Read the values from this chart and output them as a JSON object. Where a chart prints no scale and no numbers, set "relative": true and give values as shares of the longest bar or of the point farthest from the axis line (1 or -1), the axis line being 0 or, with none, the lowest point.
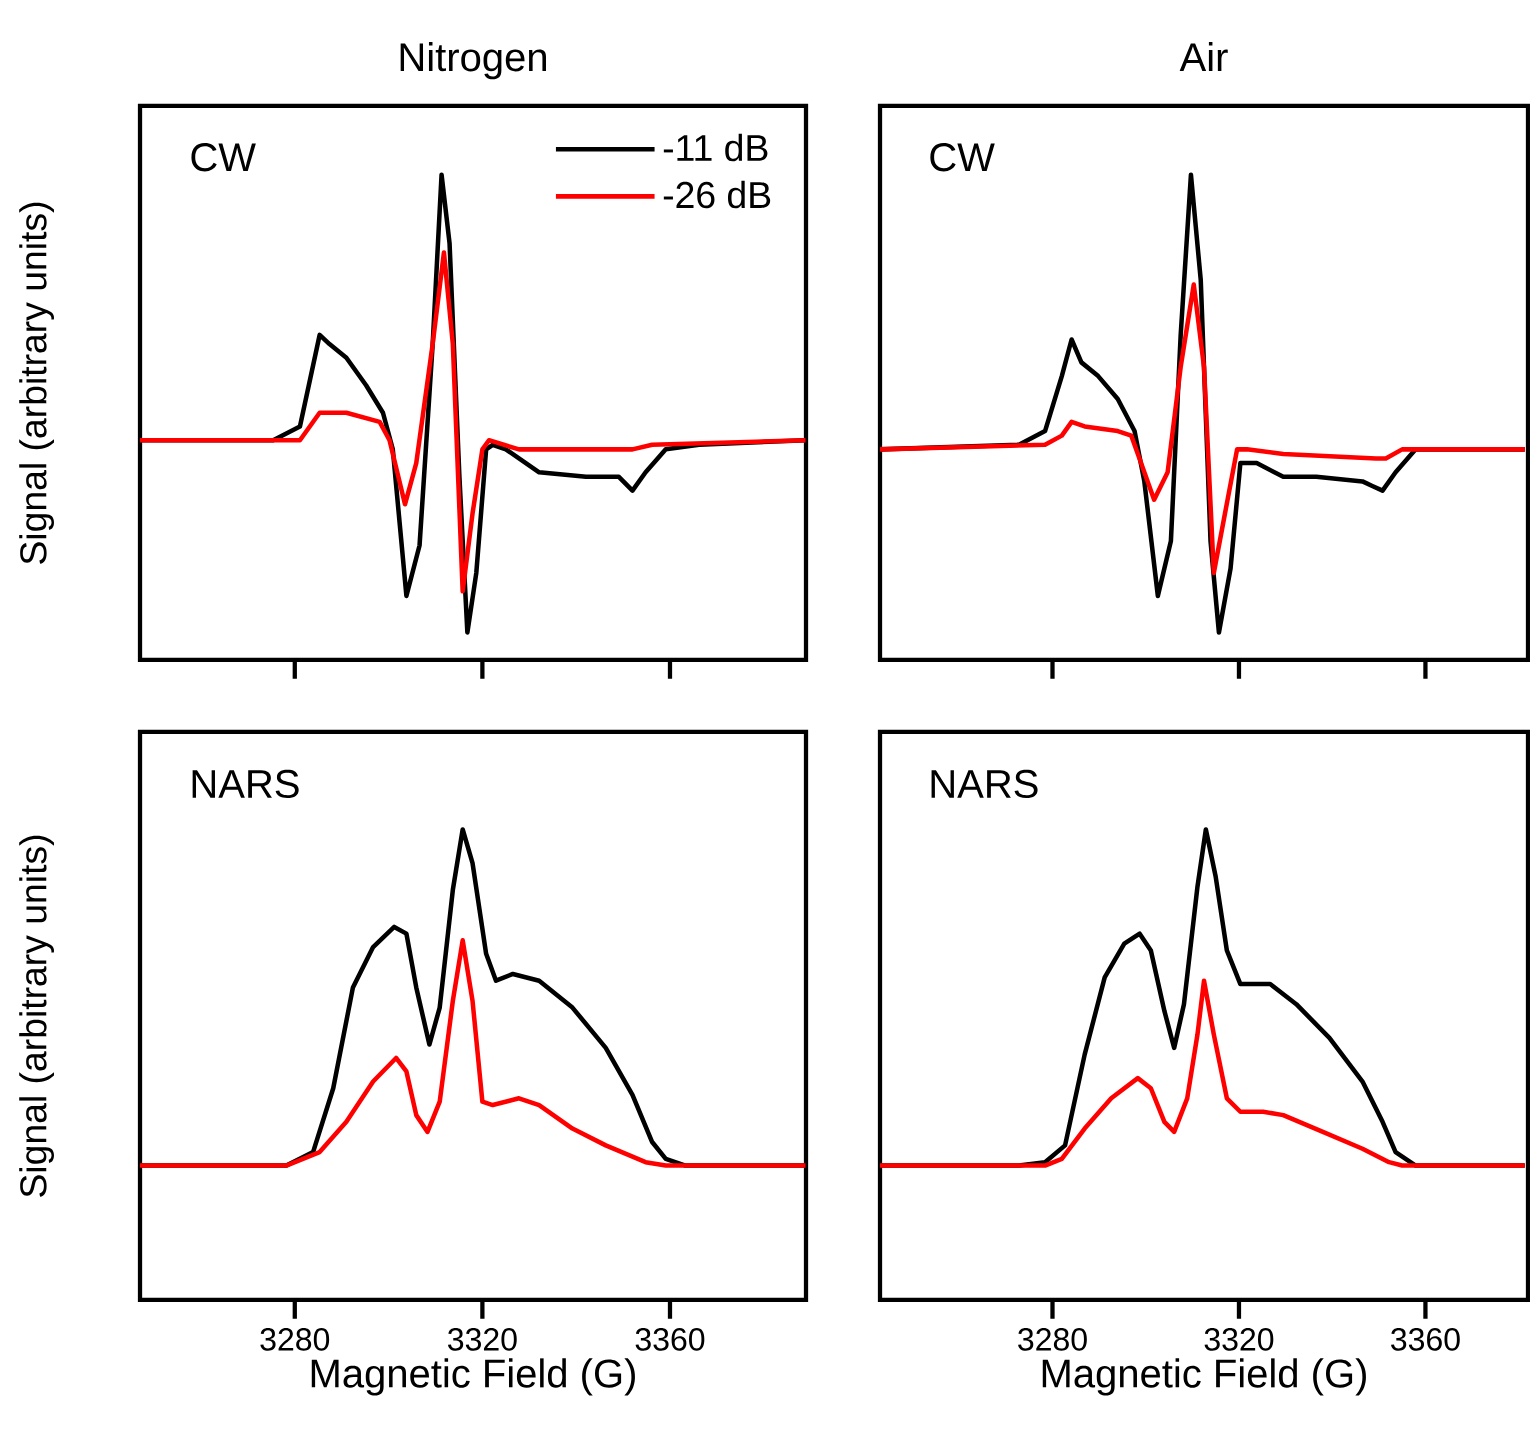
{
  "chart_data": [
    {
      "type": "line",
      "title": "Nitrogen",
      "ylabel": "Signal (arbitrary units)",
      "annotations": [
        "CW"
      ],
      "relative": true,
      "xlim": [
        3247,
        3389
      ],
      "xticks": [
        3280,
        3320,
        3360
      ],
      "tick_labels": false,
      "legend": "top right",
      "series": [
        {
          "name": "-11 dB",
          "color": "#000000",
          "x": [
            3247.0,
            3275.4,
            3281.1,
            3285.3,
            3287.4,
            3291.0,
            3295.2,
            3298.8,
            3300.9,
            3303.8,
            3306.6,
            3309.4,
            3311.3,
            3313.0,
            3315.1,
            3316.8,
            3318.7,
            3320.8,
            3322.2,
            3325.0,
            3332.1,
            3342.1,
            3349.1,
            3352.0,
            3354.8,
            3359.1,
            3366.2,
            3388.9
          ],
          "values": [
            0.42,
            0.42,
            0.45,
            0.65,
            0.63,
            0.6,
            0.54,
            0.48,
            0.4,
            0.08,
            0.19,
            0.63,
            1,
            0.85,
            0.34,
            0,
            0.13,
            0.4,
            0.41,
            0.4,
            0.35,
            0.34,
            0.34,
            0.31,
            0.35,
            0.4,
            0.41,
            0.42
          ]
        },
        {
          "name": "-26 dB",
          "color": "#ff0000",
          "x": [
            3247.0,
            3281.1,
            3285.3,
            3291.0,
            3298.1,
            3300.2,
            3303.5,
            3305.9,
            3309.4,
            3311.8,
            3313.7,
            3315.8,
            3317.9,
            3320.0,
            3321.4,
            3327.8,
            3342.1,
            3352.0,
            3356.2,
            3388.9
          ],
          "values": [
            0.42,
            0.42,
            0.48,
            0.48,
            0.46,
            0.42,
            0.28,
            0.37,
            0.63,
            0.83,
            0.63,
            0.09,
            0.26,
            0.4,
            0.42,
            0.4,
            0.4,
            0.4,
            0.41,
            0.42
          ]
        }
      ]
    },
    {
      "type": "line",
      "title": "Air",
      "annotations": [
        "CW"
      ],
      "relative": true,
      "xlim": [
        3243,
        3382
      ],
      "xticks": [
        3280,
        3320,
        3360
      ],
      "tick_labels": false,
      "series": [
        {
          "color": "#000000",
          "x": [
            3243.0,
            3272.8,
            3278.4,
            3282.0,
            3284.1,
            3286.2,
            3289.8,
            3294.0,
            3297.6,
            3299.7,
            3302.6,
            3305.4,
            3307.5,
            3309.7,
            3311.8,
            3313.9,
            3315.7,
            3318.2,
            3320.3,
            3323.8,
            3329.5,
            3336.6,
            3346.5,
            3348.6,
            3350.8,
            3353.6,
            3357.9,
            3381.3
          ],
          "values": [
            0.4,
            0.41,
            0.44,
            0.56,
            0.64,
            0.59,
            0.56,
            0.51,
            0.44,
            0.33,
            0.08,
            0.2,
            0.65,
            1,
            0.77,
            0.2,
            0,
            0.14,
            0.37,
            0.37,
            0.34,
            0.34,
            0.33,
            0.32,
            0.31,
            0.35,
            0.4,
            0.4
          ]
        },
        {
          "color": "#ff0000",
          "x": [
            3243.0,
            3278.4,
            3282.0,
            3284.1,
            3286.9,
            3294.0,
            3296.9,
            3299.0,
            3301.8,
            3304.7,
            3307.5,
            3310.3,
            3312.5,
            3314.6,
            3317.0,
            3319.6,
            3321.7,
            3329.5,
            3349.4,
            3351.5,
            3355.0,
            3381.3
          ],
          "values": [
            0.4,
            0.41,
            0.43,
            0.46,
            0.45,
            0.44,
            0.43,
            0.37,
            0.29,
            0.35,
            0.58,
            0.76,
            0.58,
            0.13,
            0.26,
            0.4,
            0.4,
            0.39,
            0.38,
            0.38,
            0.4,
            0.4
          ]
        }
      ]
    },
    {
      "type": "line",
      "xlabel": "Magnetic Field (G)",
      "ylabel": "Signal (arbitrary units)",
      "annotations": [
        "NARS"
      ],
      "relative": true,
      "xlim": [
        3247,
        3389
      ],
      "xticks": [
        3280,
        3320,
        3360
      ],
      "tick_labels": "x",
      "series": [
        {
          "color": "#000000",
          "x": [
            3247.0,
            3251.3,
            3264.0,
            3278.2,
            3283.9,
            3288.2,
            3292.4,
            3296.7,
            3301.2,
            3303.8,
            3305.9,
            3308.7,
            3310.9,
            3313.7,
            3315.8,
            3317.9,
            3320.8,
            3322.9,
            3326.5,
            3332.1,
            3339.2,
            3346.3,
            3352.0,
            3356.2,
            3359.1,
            3363.3,
            3388.9
          ],
          "values": [
            0,
            0,
            0,
            0,
            0.04,
            0.23,
            0.53,
            0.65,
            0.71,
            0.69,
            0.53,
            0.36,
            0.47,
            0.82,
            1,
            0.9,
            0.63,
            0.55,
            0.57,
            0.55,
            0.47,
            0.35,
            0.21,
            0.07,
            0.02,
            0,
            0
          ]
        },
        {
          "color": "#ff0000",
          "x": [
            3247.0,
            3278.2,
            3285.3,
            3291.0,
            3296.7,
            3301.6,
            3303.8,
            3305.9,
            3308.3,
            3310.9,
            3313.7,
            3315.8,
            3317.9,
            3320.0,
            3322.2,
            3327.8,
            3332.1,
            3339.2,
            3346.3,
            3354.8,
            3359.1,
            3388.9
          ],
          "values": [
            0,
            0,
            0.04,
            0.13,
            0.25,
            0.32,
            0.28,
            0.15,
            0.1,
            0.19,
            0.49,
            0.67,
            0.49,
            0.19,
            0.18,
            0.2,
            0.18,
            0.11,
            0.06,
            0.01,
            0,
            0
          ]
        }
      ]
    },
    {
      "type": "line",
      "xlabel": "Magnetic Field (G)",
      "annotations": [
        "NARS"
      ],
      "relative": true,
      "xlim": [
        3243,
        3382
      ],
      "xticks": [
        3280,
        3320,
        3360
      ],
      "tick_labels": "x",
      "series": [
        {
          "color": "#000000",
          "x": [
            3243.0,
            3272.8,
            3278.4,
            3282.7,
            3286.9,
            3291.2,
            3295.4,
            3298.7,
            3301.1,
            3304.0,
            3306.1,
            3308.2,
            3311.1,
            3312.9,
            3315.0,
            3317.4,
            3320.3,
            3322.4,
            3326.7,
            3332.3,
            3339.4,
            3346.5,
            3350.8,
            3353.6,
            3357.9,
            3381.3
          ],
          "values": [
            0,
            0,
            0.01,
            0.06,
            0.33,
            0.56,
            0.66,
            0.69,
            0.64,
            0.46,
            0.35,
            0.48,
            0.83,
            1,
            0.86,
            0.64,
            0.54,
            0.54,
            0.54,
            0.48,
            0.38,
            0.25,
            0.13,
            0.04,
            0,
            0
          ]
        },
        {
          "color": "#ff0000",
          "x": [
            3243.0,
            3278.4,
            3282.0,
            3286.9,
            3292.6,
            3298.3,
            3301.1,
            3304.0,
            3306.1,
            3308.9,
            3311.1,
            3312.5,
            3314.6,
            3317.4,
            3320.3,
            3325.2,
            3329.5,
            3338.0,
            3346.5,
            3352.2,
            3355.0,
            3381.3
          ],
          "values": [
            0,
            0,
            0.02,
            0.11,
            0.2,
            0.26,
            0.23,
            0.13,
            0.1,
            0.2,
            0.39,
            0.55,
            0.39,
            0.2,
            0.16,
            0.16,
            0.15,
            0.1,
            0.05,
            0.01,
            0,
            0
          ]
        }
      ]
    }
  ]
}
